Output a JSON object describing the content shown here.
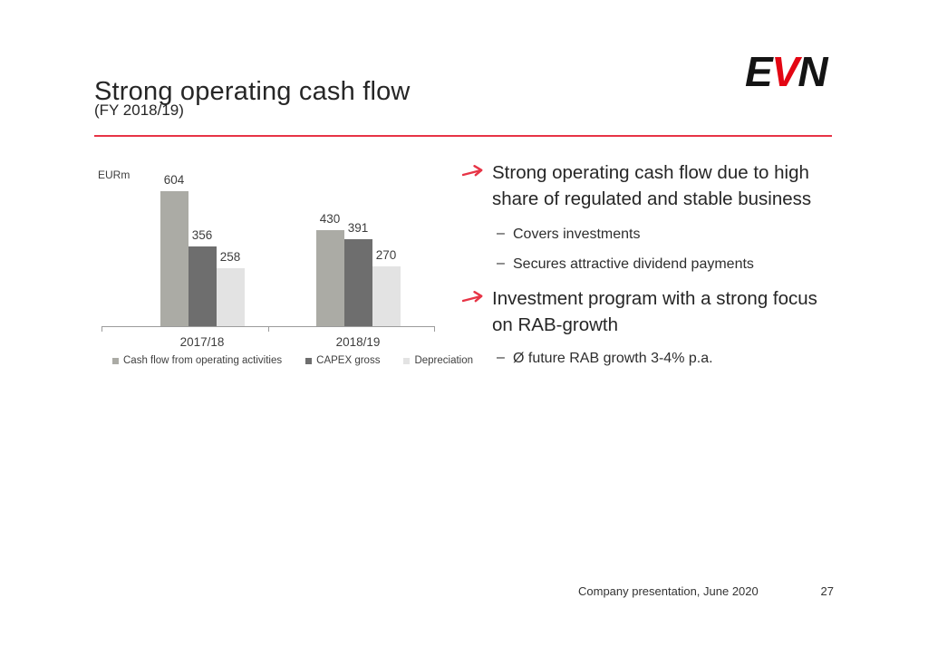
{
  "slide": {
    "title": "Strong operating cash flow",
    "subtitle": "(FY 2018/19)",
    "logo": {
      "e": "E",
      "v": "V",
      "n": "N"
    },
    "footer": {
      "text": "Company presentation, June 2020",
      "page": "27"
    }
  },
  "colors": {
    "accent_red": "#e73446",
    "logo_red": "#e30613",
    "axis_gray": "#9c9c9c"
  },
  "chart_data": {
    "type": "bar",
    "title": "",
    "unit_label": "EURm",
    "categories": [
      "2017/18",
      "2018/19"
    ],
    "series": [
      {
        "name": "Cash flow from operating activities",
        "color": "#ababa5",
        "values": [
          604,
          430
        ]
      },
      {
        "name": "CAPEX gross",
        "color": "#6e6e6e",
        "values": [
          356,
          391
        ]
      },
      {
        "name": "Depreciation",
        "color": "#e3e3e3",
        "values": [
          258,
          270
        ]
      }
    ],
    "ylim": [
      0,
      650
    ],
    "grid": false,
    "legend_position": "bottom",
    "value_labels": true
  },
  "bullets": [
    {
      "text": "Strong operating cash flow due to high share of regulated and stable business",
      "subs": [
        "Covers investments",
        "Secures attractive dividend payments"
      ]
    },
    {
      "text": "Investment program with a strong focus on RAB-growth",
      "subs": [
        "Ø future RAB growth 3-4% p.a."
      ]
    }
  ]
}
